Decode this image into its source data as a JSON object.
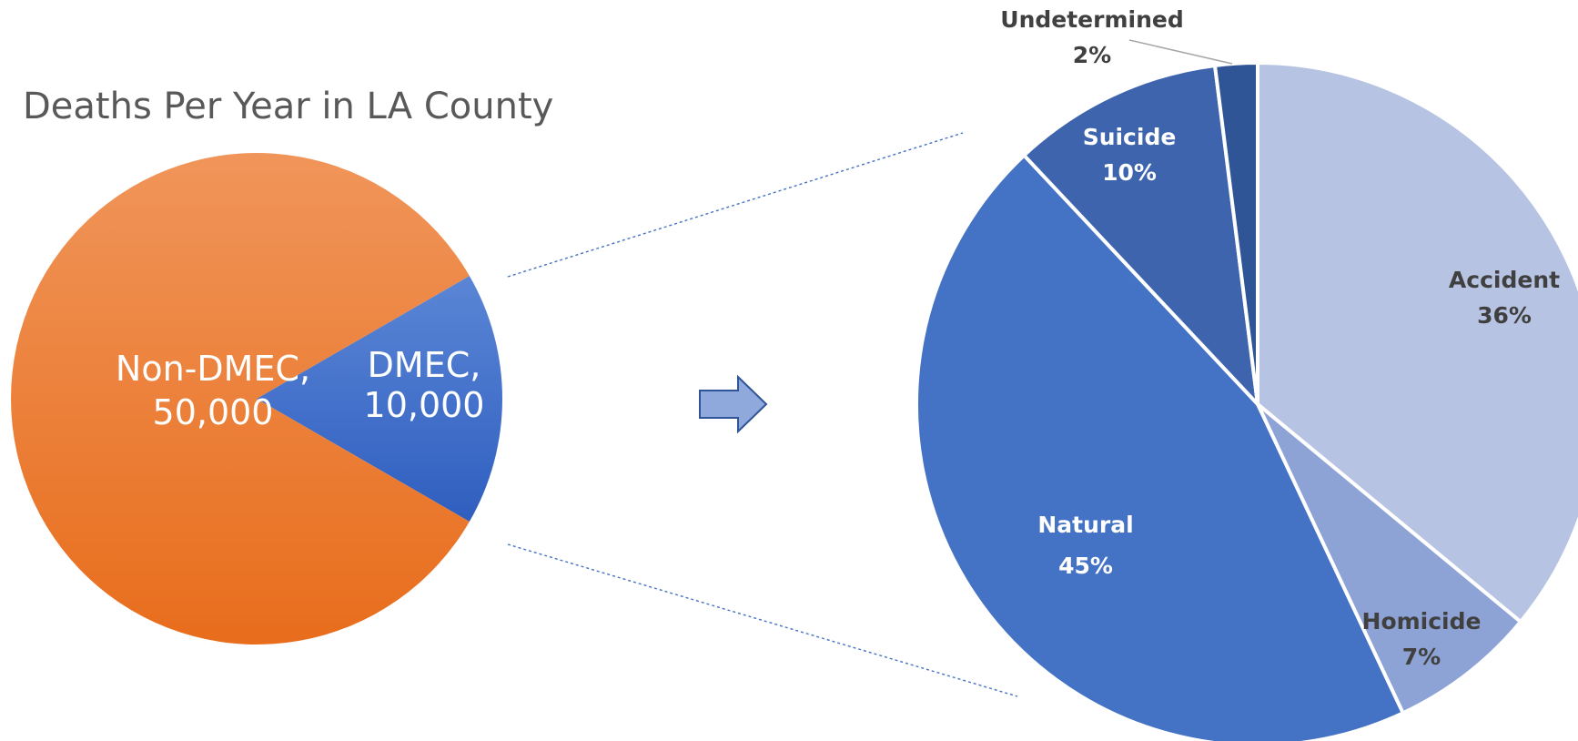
{
  "chart_data": [
    {
      "type": "pie",
      "title": "Deaths Per Year in LA County",
      "slices": [
        {
          "label": "DMEC",
          "value": 10000,
          "display": [
            "DMEC,",
            "10,000"
          ],
          "color": "#3f6fd0"
        },
        {
          "label": "Non-DMEC",
          "value": 50000,
          "display": [
            "Non-DMEC,",
            "50,000"
          ],
          "color": "#ef7a2a"
        }
      ]
    },
    {
      "type": "pie",
      "title": "",
      "slices": [
        {
          "label": "Accident",
          "value": 36,
          "display": [
            "Accident",
            "36%"
          ],
          "color": "#b7c3e2",
          "label_color": "#404040"
        },
        {
          "label": "Homicide",
          "value": 7,
          "display": [
            "Homicide",
            "7%"
          ],
          "color": "#8ea3d5",
          "label_color": "#404040"
        },
        {
          "label": "Natural",
          "value": 45,
          "display": [
            "Natural",
            "45%"
          ],
          "color": "#4472c4",
          "label_color": "#ffffff"
        },
        {
          "label": "Suicide",
          "value": 10,
          "display": [
            "Suicide",
            "10%"
          ],
          "color": "#3d64ad",
          "label_color": "#ffffff"
        },
        {
          "label": "Undetermined",
          "value": 2,
          "display": [
            "Undetermined",
            "2%"
          ],
          "color": "#2f5597",
          "label_color": "#404040"
        }
      ]
    }
  ],
  "arrow": {
    "icon": "right-arrow-icon",
    "fill": "#8fa9dc",
    "stroke": "#2f5597"
  },
  "connector_color": "#4472c4"
}
